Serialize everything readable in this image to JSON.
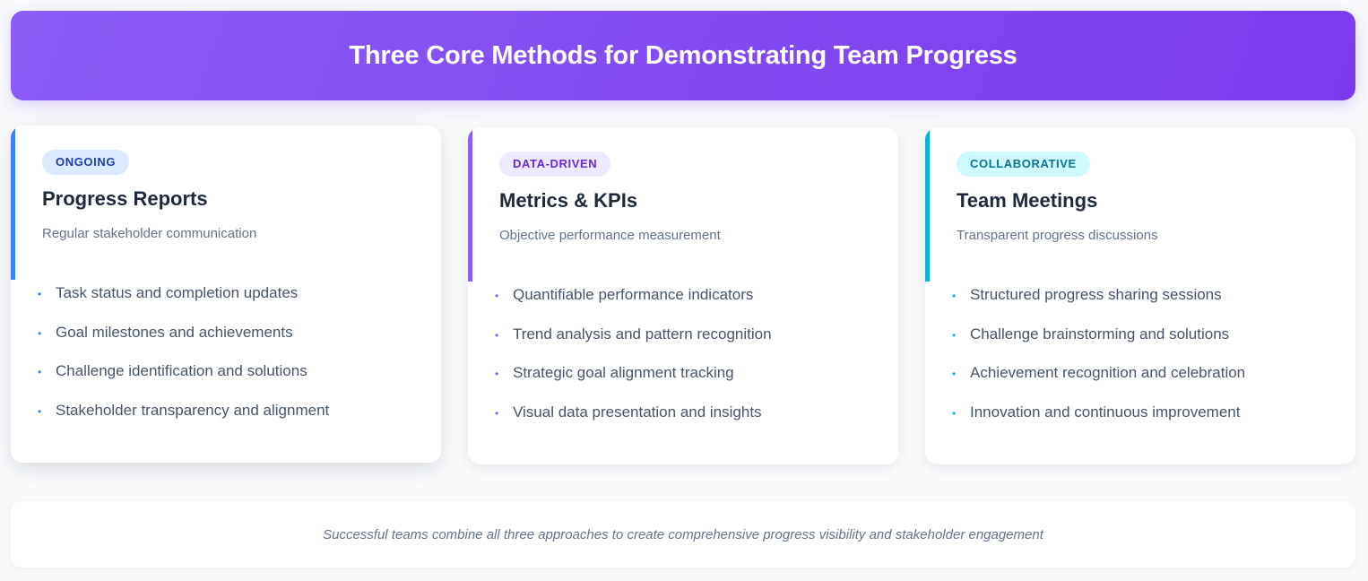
{
  "header": {
    "title": "Three Core Methods for Demonstrating Team Progress"
  },
  "cards": [
    {
      "badge": "ONGOING",
      "title": "Progress Reports",
      "subtitle": "Regular stakeholder communication",
      "items": [
        "Task status and completion updates",
        "Goal milestones and achievements",
        "Challenge identification and solutions",
        "Stakeholder transparency and alignment"
      ],
      "accent_color": "#3b82f6",
      "badge_bg": "#dbeafe",
      "badge_text_color": "#1e40af"
    },
    {
      "badge": "DATA-DRIVEN",
      "title": "Metrics & KPIs",
      "subtitle": "Objective performance measurement",
      "items": [
        "Quantifiable performance indicators",
        "Trend analysis and pattern recognition",
        "Strategic goal alignment tracking",
        "Visual data presentation and insights"
      ],
      "accent_color": "#8b5cf6",
      "badge_bg": "#ede9fe",
      "badge_text_color": "#6d28d9"
    },
    {
      "badge": "COLLABORATIVE",
      "title": "Team Meetings",
      "subtitle": "Transparent progress discussions",
      "items": [
        "Structured progress sharing sessions",
        "Challenge brainstorming and solutions",
        "Achievement recognition and celebration",
        "Innovation and continuous improvement"
      ],
      "accent_color": "#06b6d4",
      "badge_bg": "#cffafe",
      "badge_text_color": "#0e7490"
    }
  ],
  "footer": {
    "text": "Successful teams combine all three approaches to create comprehensive progress visibility and stakeholder engagement"
  }
}
